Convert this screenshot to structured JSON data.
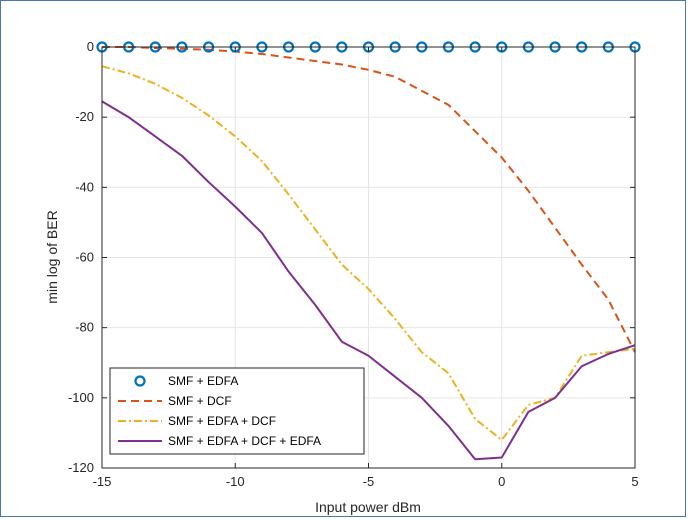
{
  "chart_data": {
    "type": "line",
    "xlabel": "Input power dBm",
    "ylabel": "min log of BER",
    "xlim": [
      -15,
      5
    ],
    "ylim": [
      -120,
      0
    ],
    "xticks": [
      -15,
      -10,
      -5,
      0,
      5
    ],
    "yticks": [
      0,
      -20,
      -40,
      -60,
      -80,
      -100,
      -120
    ],
    "grid": true,
    "legend_position": "bottom-left",
    "x": [
      -15,
      -14,
      -13,
      -12,
      -11,
      -10,
      -9,
      -8,
      -7,
      -6,
      -5,
      -4,
      -3,
      -2,
      -1,
      0,
      1,
      2,
      3,
      4,
      5
    ],
    "series": [
      {
        "name": "SMF + EDFA",
        "style": "circles",
        "color": "#0072BD",
        "values": [
          0,
          0,
          0,
          0,
          0,
          0,
          0,
          0,
          0,
          0,
          0,
          0,
          0,
          0,
          0,
          0,
          0,
          0,
          0,
          0,
          0
        ]
      },
      {
        "name": "SMF + DCF",
        "style": "dashed",
        "color": "#D95319",
        "values": [
          0,
          0,
          -0.3,
          -0.5,
          -0.8,
          -1.3,
          -2,
          -3,
          -4,
          -5,
          -6.5,
          -8.5,
          -12.5,
          -16.5,
          -24,
          -31.5,
          -41,
          -51.5,
          -62,
          -72,
          -87
        ]
      },
      {
        "name": "SMF + EDFA + DCF",
        "style": "dashdot",
        "color": "#EDB120",
        "values": [
          -5.5,
          -7.5,
          -10.5,
          -14.5,
          -19.5,
          -25.5,
          -32.5,
          -42,
          -52,
          -62,
          -69,
          -77.5,
          -87,
          -93,
          -106,
          -112,
          -102,
          -100,
          -88,
          -87,
          -86
        ]
      },
      {
        "name": "SMF + EDFA + DCF + EDFA",
        "style": "solid",
        "color": "#7E2F8E",
        "values": [
          -15.5,
          -20,
          -25.5,
          -31,
          -38.5,
          -45.5,
          -53,
          -64,
          -73.5,
          -84,
          -88,
          -94,
          -100,
          -108,
          -117.5,
          -117,
          -104,
          -100,
          -91,
          -87.5,
          -85
        ]
      }
    ]
  }
}
